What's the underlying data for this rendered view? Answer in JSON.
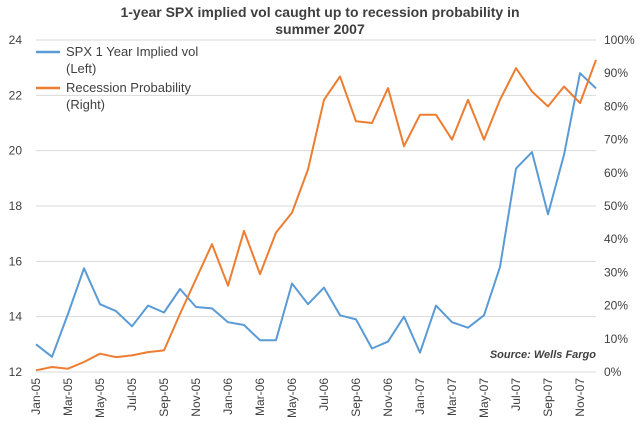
{
  "chart_data": {
    "type": "line",
    "title_line1": "1-year SPX implied  vol caught up to recession probability  in",
    "title_line2": "summer 2007",
    "source": "Source: Wells Fargo",
    "x": [
      "Jan-05",
      "Feb-05",
      "Mar-05",
      "Apr-05",
      "May-05",
      "Jun-05",
      "Jul-05",
      "Aug-05",
      "Sep-05",
      "Oct-05",
      "Nov-05",
      "Dec-05",
      "Jan-06",
      "Feb-06",
      "Mar-06",
      "Apr-06",
      "May-06",
      "Jun-06",
      "Jul-06",
      "Aug-06",
      "Sep-06",
      "Oct-06",
      "Nov-06",
      "Dec-06",
      "Jan-07",
      "Feb-07",
      "Mar-07",
      "Apr-07",
      "May-07",
      "Jun-07",
      "Jul-07",
      "Aug-07",
      "Sep-07",
      "Oct-07",
      "Nov-07",
      "Dec-07"
    ],
    "x_tick_labels": [
      "Jan-05",
      "Mar-05",
      "May-05",
      "Jul-05",
      "Sep-05",
      "Nov-05",
      "Jan-06",
      "Mar-06",
      "May-06",
      "Jul-06",
      "Sep-06",
      "Nov-06",
      "Jan-07",
      "Mar-07",
      "May-07",
      "Jul-07",
      "Sep-07",
      "Nov-07"
    ],
    "y_left": {
      "min": 12,
      "max": 24,
      "ticks": [
        "12",
        "14",
        "16",
        "18",
        "20",
        "22",
        "24"
      ]
    },
    "y_right": {
      "min": 0,
      "max": 100,
      "ticks": [
        "0%",
        "10%",
        "20%",
        "30%",
        "40%",
        "50%",
        "60%",
        "70%",
        "80%",
        "90%",
        "100%"
      ]
    },
    "series": [
      {
        "name": "SPX 1 Year Implied vol",
        "name_line2": "(Left)",
        "axis": "left",
        "color": "#5b9bd5",
        "values": [
          13.0,
          12.55,
          14.1,
          15.75,
          14.45,
          14.2,
          13.65,
          14.4,
          14.15,
          15.0,
          14.35,
          14.3,
          13.8,
          13.7,
          13.15,
          13.15,
          15.2,
          14.45,
          15.05,
          14.05,
          13.9,
          12.85,
          13.1,
          14.0,
          12.7,
          14.4,
          13.8,
          13.6,
          14.05,
          15.8,
          19.35,
          19.95,
          17.7,
          19.85,
          22.8,
          22.25
        ]
      },
      {
        "name": "Recession Probability",
        "name_line2": "(Right)",
        "axis": "right",
        "color": "#ed7d31",
        "values": [
          0.5,
          1.5,
          1.0,
          3.0,
          5.5,
          4.5,
          5.0,
          6.0,
          6.5,
          17.5,
          28.0,
          38.5,
          26.0,
          42.5,
          29.5,
          42.0,
          48.0,
          61.0,
          82.0,
          89.0,
          75.5,
          75.0,
          85.5,
          68.0,
          77.5,
          77.5,
          70.0,
          82.0,
          70.0,
          82.0,
          91.5,
          84.5,
          80.0,
          86.0,
          81.0,
          94.0
        ]
      }
    ]
  }
}
